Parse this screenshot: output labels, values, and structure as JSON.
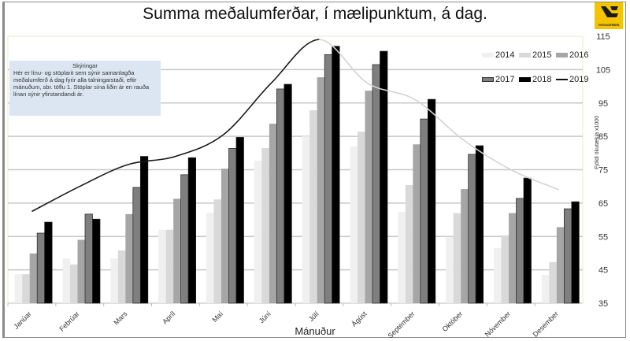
{
  "title": "Summa meðalumferðar, í mælipunktum, á dag.",
  "logo": {
    "text": "VEGAGERÐIN",
    "color": "#f5c400"
  },
  "notes": {
    "heading": "Skýringar",
    "body": "Hér er línu- og stöplarit sem sýnir samanlagða meðalumferð á dag fyrir alla talningarstaði, eftir mánuðum, sbr. töflu 1. Stöplar sína liðin ár en rauða línan sýnir yfirstandandi ár."
  },
  "legend": [
    "2014",
    "2015",
    "2016",
    "2017",
    "2018",
    "2019"
  ],
  "axis": {
    "xlabel": "Mánuður",
    "ylabel": "Fjöldi ökutækja x1000"
  },
  "chart_data": {
    "type": "bar",
    "title": "Summa meðalumferðar, í mælipunktum, á dag.",
    "xlabel": "Mánuður",
    "ylabel": "Fjöldi ökutækja x1000",
    "ylim": [
      35,
      115
    ],
    "yticks": [
      35,
      45,
      55,
      65,
      75,
      85,
      95,
      105,
      115
    ],
    "grid": true,
    "legend_position": "top-right",
    "categories": [
      "Janúar",
      "Febrúar",
      "Mars",
      "Apríl",
      "Maí",
      "Júní",
      "Júlí",
      "Ágúst",
      "September",
      "Október",
      "Nóvember",
      "Desember"
    ],
    "series": [
      {
        "name": "2014",
        "type": "bar",
        "color": "#f0f0f0",
        "values": [
          43.7,
          48.4,
          48.4,
          57.0,
          62.1,
          77.7,
          85.0,
          82.0,
          62.4,
          54.9,
          51.5,
          43.5
        ]
      },
      {
        "name": "2015",
        "type": "bar",
        "color": "#d9d9d9",
        "values": [
          43.7,
          46.6,
          50.8,
          57.0,
          66.1,
          81.5,
          92.8,
          86.4,
          70.4,
          62.0,
          55.3,
          47.3
        ]
      },
      {
        "name": "2016",
        "type": "bar",
        "color": "#a6a6a6",
        "values": [
          49.9,
          54.0,
          61.7,
          66.3,
          75.3,
          88.8,
          102.7,
          98.7,
          82.6,
          69.2,
          62.0,
          57.8
        ]
      },
      {
        "name": "2017",
        "type": "bar",
        "color": "#7f7f7f",
        "values": [
          56.0,
          61.7,
          69.7,
          73.5,
          81.4,
          99.2,
          109.5,
          106.5,
          90.2,
          79.6,
          66.4,
          63.3
        ]
      },
      {
        "name": "2018",
        "type": "bar",
        "color": "#000000",
        "values": [
          59.3,
          60.2,
          79.0,
          78.6,
          84.7,
          100.6,
          112.0,
          110.5,
          96.1,
          82.2,
          72.5,
          65.4
        ]
      },
      {
        "name": "2019",
        "type": "line",
        "color": "#1a1a1a",
        "values": [
          62.5,
          70.0,
          76.5,
          79.0,
          85.5,
          101.0,
          114.0,
          101.0,
          96.0,
          84.0,
          75.0,
          69.0
        ]
      }
    ]
  }
}
